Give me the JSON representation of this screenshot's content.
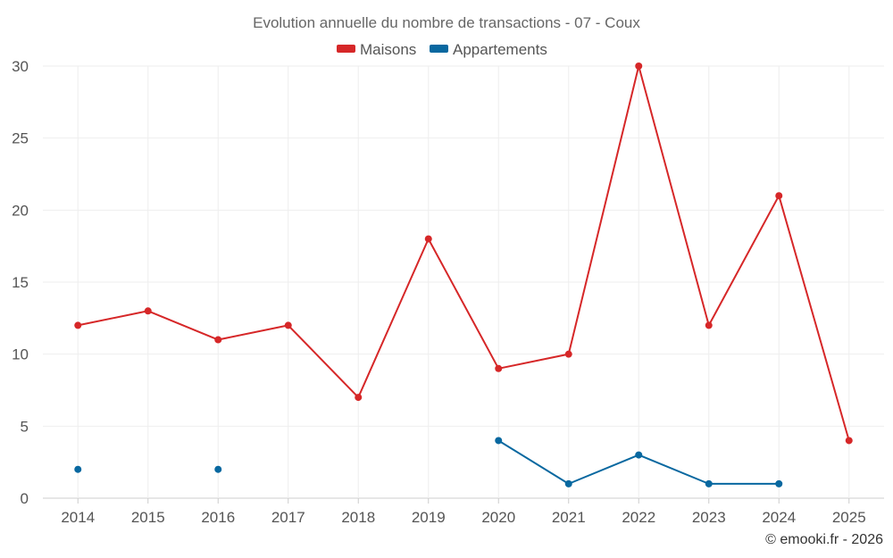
{
  "chart_data": {
    "type": "line",
    "title": "Evolution annuelle du nombre de transactions - 07 - Coux",
    "categories": [
      "2014",
      "2015",
      "2016",
      "2017",
      "2018",
      "2019",
      "2020",
      "2021",
      "2022",
      "2023",
      "2024",
      "2025"
    ],
    "series": [
      {
        "name": "Maisons",
        "color": "#d62728",
        "values": [
          12,
          13,
          11,
          12,
          7,
          18,
          9,
          10,
          30,
          12,
          21,
          4
        ]
      },
      {
        "name": "Appartements",
        "color": "#0868a0",
        "values": [
          2,
          null,
          2,
          null,
          null,
          null,
          4,
          1,
          3,
          1,
          1,
          null
        ]
      }
    ],
    "ylim": [
      0,
      30
    ],
    "yticks": [
      "0",
      "5",
      "10",
      "15",
      "20",
      "25",
      "30"
    ],
    "ytick_values": [
      0,
      5,
      10,
      15,
      20,
      25,
      30
    ],
    "grid": true,
    "legend": "top-center",
    "xlabel": "",
    "ylabel": ""
  },
  "credit": "© emooki.fr - 2026"
}
